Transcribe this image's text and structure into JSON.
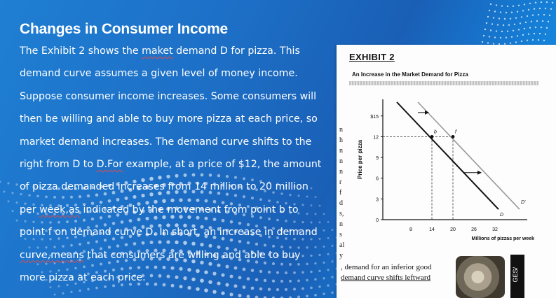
{
  "slide": {
    "title": "Changes in Consumer Income",
    "body_lines": [
      {
        "parts": [
          {
            "t": "The Exhibit 2 shows the "
          },
          {
            "t": "maket",
            "sq": true
          },
          {
            "t": " demand D for pizza. This"
          }
        ]
      },
      {
        "parts": [
          {
            "t": "demand curve assumes a given level of money income."
          }
        ]
      },
      {
        "parts": [
          {
            "t": "Suppose consumer income increases. Some consumers will"
          }
        ]
      },
      {
        "parts": [
          {
            "t": "then be willing and able to buy more pizza at each price, so"
          }
        ]
      },
      {
        "parts": [
          {
            "t": "market demand increases. The demand curve shifts to the"
          }
        ]
      },
      {
        "parts": [
          {
            "t": "right from D to "
          },
          {
            "t": "D.For",
            "sq": true
          },
          {
            "t": " example, at a price of $12, the amount"
          }
        ]
      },
      {
        "parts": [
          {
            "t": "of pizza demanded increases from 14 million to 20 million"
          }
        ]
      },
      {
        "parts": [
          {
            "t": "per "
          },
          {
            "t": "week,as",
            "sq": true
          },
          {
            "t": " indicated by the movement from point b to"
          }
        ]
      },
      {
        "parts": [
          {
            "t": "point f on demand curve D. In short, an increase in demand"
          }
        ]
      },
      {
        "parts": [
          {
            "t": "curve,means",
            "sq": true
          },
          {
            "t": " that consumers are willing and able to buy"
          }
        ]
      },
      {
        "parts": [
          {
            "t": "more pizza at each price."
          }
        ]
      }
    ]
  },
  "exhibit": {
    "heading": "EXHIBIT 2",
    "subtitle": "An Increase in the Market Demand for Pizza",
    "margin_fragments": [
      "n",
      "h",
      "n",
      "n",
      "n",
      "r",
      "f",
      "d",
      "s,",
      "n",
      "s",
      "al",
      "y"
    ],
    "bottom_lines": [
      ", demand for an inferior good",
      "demand curve shifts leftward"
    ],
    "side_label": "GES/"
  },
  "chart_data": {
    "type": "line",
    "title": "",
    "xlabel": "Millions of pizzas per week",
    "ylabel": "Price per pizza",
    "xlim": [
      0,
      40
    ],
    "ylim": [
      0,
      17
    ],
    "x_ticks": [
      "8",
      "14",
      "20",
      "26",
      "32"
    ],
    "x_tick_values": [
      8,
      14,
      20,
      26,
      32
    ],
    "y_ticks": [
      "0",
      "3",
      "6",
      "9",
      "12",
      "$15"
    ],
    "y_tick_values": [
      0,
      3,
      6,
      9,
      12,
      15
    ],
    "series": [
      {
        "name": "D",
        "color": "#111111",
        "points": [
          [
            4,
            17
          ],
          [
            33,
            1.5
          ]
        ]
      },
      {
        "name": "D'",
        "color": "#999999",
        "points": [
          [
            10,
            17
          ],
          [
            39,
            1.5
          ]
        ]
      }
    ],
    "points": [
      {
        "label": "b",
        "x": 14,
        "y": 12
      },
      {
        "label": "f",
        "x": 20,
        "y": 12
      }
    ],
    "guide_price": 12,
    "guides_to_x": [
      14,
      20
    ],
    "arrows": [
      {
        "from": [
          10,
          15.5
        ],
        "to": [
          13,
          15.5
        ]
      },
      {
        "from": [
          23,
          6.8
        ],
        "to": [
          28,
          6.8
        ]
      }
    ]
  }
}
